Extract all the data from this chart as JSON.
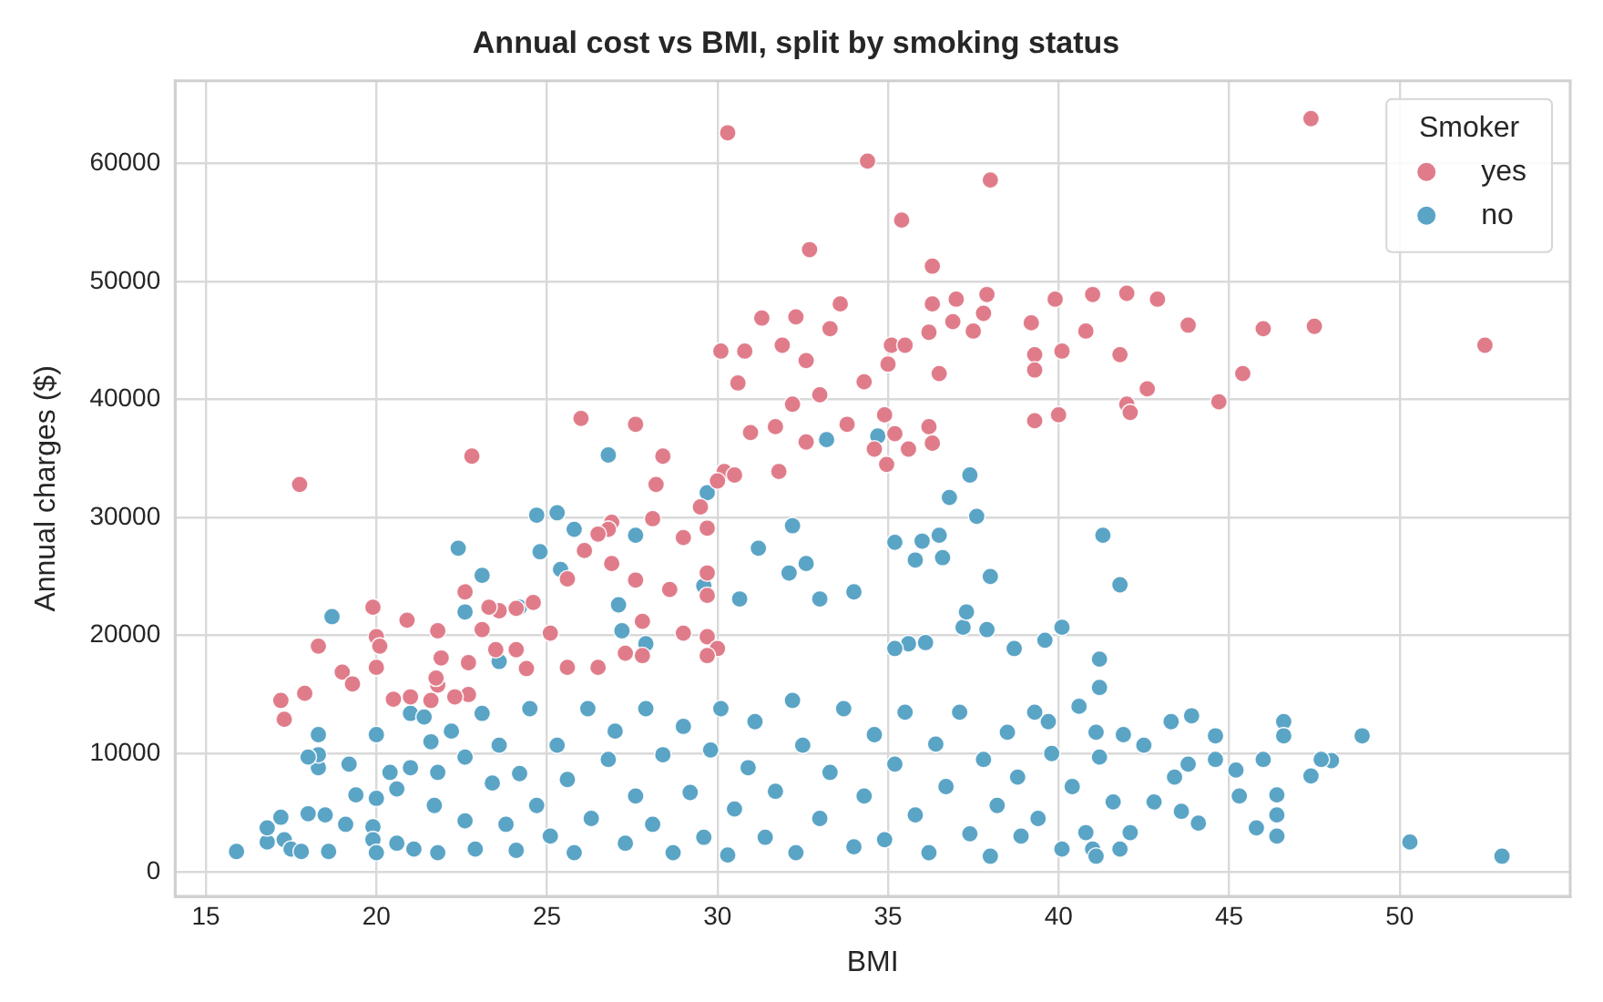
{
  "chart_data": {
    "type": "scatter",
    "title": "Annual cost vs BMI, split by smoking status",
    "xlabel": "BMI",
    "ylabel": "Annual charges ($)",
    "legend_title": "Smoker",
    "legend": "top right",
    "grid": true,
    "marker": "circle",
    "xlim": [
      14.1,
      55
    ],
    "xticks": [
      15,
      20,
      25,
      30,
      35,
      40,
      45,
      50
    ],
    "ylim": [
      -2100,
      67000
    ],
    "yticks": [
      0,
      10000,
      20000,
      30000,
      40000,
      50000,
      60000
    ],
    "series": [
      {
        "name": "yes",
        "color": "#e07c8a",
        "x": [
          47.4,
          30.3,
          34.4,
          38.0,
          35.4,
          32.7,
          36.3,
          47.5,
          52.5,
          46.0,
          44.7,
          45.4,
          43.8,
          42.9,
          42.0,
          41.0,
          39.9,
          40.8,
          41.8,
          42.0,
          42.1,
          42.6,
          37.9,
          39.2,
          40.1,
          39.3,
          39.3,
          40.0,
          39.3,
          36.3,
          37.0,
          37.8,
          36.9,
          36.2,
          37.5,
          36.5,
          36.2,
          36.3,
          35.2,
          35.6,
          34.9,
          35.0,
          35.1,
          35.5,
          34.3,
          34.96,
          34.6,
          33.8,
          33.6,
          33.3,
          32.3,
          31.3,
          30.8,
          31.9,
          32.6,
          30.1,
          30.6,
          32.2,
          33.0,
          31.7,
          30.97,
          32.6,
          31.8,
          30.2,
          30.0,
          30.5,
          29.5,
          29.7,
          29.7,
          29.7,
          29.7,
          30.0,
          29.7,
          27.6,
          26.0,
          22.8,
          28.4,
          28.2,
          17.75,
          28.1,
          29.0,
          26.9,
          26.8,
          26.5,
          26.1,
          25.6,
          26.9,
          27.6,
          27.8,
          28.6,
          29.0,
          27.8,
          27.3,
          26.5,
          25.6,
          25.1,
          24.6,
          24.1,
          23.6,
          23.3,
          22.6,
          23.1,
          22.7,
          23.5,
          24.1,
          24.4,
          22.7,
          21.9,
          21.8,
          21.6,
          21.0,
          21.8,
          20.9,
          19.9,
          20.0,
          20.1,
          20.0,
          19.0,
          19.3,
          18.3,
          17.9,
          17.2,
          17.3,
          20.5,
          21.75,
          22.3
        ],
        "values": [
          63800,
          62600,
          60200,
          58600,
          55200,
          52700,
          51300,
          46200,
          44600,
          46000,
          39800,
          42200,
          46300,
          48500,
          49000,
          48900,
          48500,
          45800,
          43800,
          39600,
          38900,
          40900,
          48900,
          46500,
          44100,
          43800,
          42500,
          38700,
          38200,
          48100,
          48500,
          47300,
          46600,
          45700,
          45800,
          42200,
          37700,
          36300,
          37100,
          35800,
          38700,
          43000,
          44600,
          44600,
          41500,
          34500,
          35800,
          37900,
          48100,
          46000,
          47000,
          46900,
          44100,
          44600,
          43300,
          44100,
          41400,
          39600,
          40400,
          37700,
          37200,
          36400,
          33900,
          33900,
          33100,
          33600,
          30900,
          29100,
          25300,
          23400,
          19900,
          18900,
          18300,
          37900,
          38400,
          35200,
          35200,
          32800,
          32800,
          29900,
          28300,
          29600,
          29000,
          28600,
          27200,
          24800,
          26100,
          24700,
          21200,
          23900,
          20200,
          18300,
          18500,
          17300,
          17300,
          20200,
          22800,
          22300,
          22100,
          22400,
          23700,
          20500,
          17700,
          18800,
          18800,
          17200,
          15000,
          18100,
          15800,
          14500,
          14800,
          20400,
          21300,
          22400,
          19900,
          19100,
          17300,
          16900,
          15900,
          19100,
          15100,
          14500,
          12900,
          14600,
          16400,
          14800
        ]
      },
      {
        "name": "no",
        "color": "#5aa4c6",
        "x": [
          53.0,
          50.3,
          48.9,
          48.0,
          47.7,
          47.4,
          46.6,
          46.6,
          46.4,
          46.4,
          46.4,
          45.8,
          46.0,
          45.3,
          45.2,
          44.6,
          44.6,
          43.9,
          43.3,
          43.8,
          43.6,
          42.8,
          42.1,
          41.8,
          41.3,
          41.8,
          41.0,
          41.1,
          39.7,
          41.1,
          41.2,
          41.2,
          40.1,
          39.6,
          38.7,
          37.9,
          37.2,
          37.3,
          38.0,
          37.6,
          37.4,
          36.8,
          36.6,
          36.5,
          36.0,
          35.8,
          35.2,
          35.6,
          36.1,
          35.2,
          26.8,
          34.7,
          33.2,
          24.7,
          25.3,
          25.8,
          27.6,
          29.7,
          32.2,
          31.2,
          32.1,
          32.6,
          33.0,
          34.0,
          18.7,
          22.4,
          24.8,
          23.1,
          22.6,
          24.2,
          27.1,
          27.2,
          27.9,
          23.6,
          25.4,
          29.6,
          30.65,
          15.9,
          16.8,
          16.8,
          17.2,
          17.3,
          17.5,
          17.8,
          18.0,
          18.3,
          18.3,
          18.3,
          18.0,
          18.6,
          18.5,
          19.2,
          19.1,
          19.4,
          19.9,
          19.9,
          20.0,
          20.0,
          20.0,
          20.4,
          20.6,
          20.6,
          21.1,
          21.0,
          21.0,
          21.4,
          21.6,
          21.8,
          21.7,
          21.8,
          22.2,
          22.6,
          22.6,
          22.9,
          23.1,
          23.4,
          23.6,
          23.8,
          24.1,
          24.2,
          24.5,
          24.7,
          25.1,
          25.3,
          25.6,
          25.8,
          26.2,
          26.3,
          26.8,
          27.0,
          27.3,
          27.6,
          27.9,
          28.1,
          28.4,
          28.7,
          29.0,
          29.2,
          29.6,
          29.8,
          30.1,
          30.3,
          30.5,
          30.9,
          31.1,
          31.4,
          31.7,
          32.2,
          32.3,
          32.5,
          33.0,
          33.3,
          33.7,
          34.0,
          34.3,
          34.6,
          34.9,
          35.2,
          35.5,
          35.8,
          36.2,
          36.4,
          36.7,
          37.1,
          37.4,
          37.8,
          38.0,
          38.2,
          38.5,
          38.8,
          38.9,
          39.3,
          39.4,
          39.8,
          40.1,
          40.4,
          40.6,
          40.8,
          41.2,
          41.6,
          41.9,
          42.5,
          44.1,
          43.4
        ],
        "values": [
          1300,
          2500,
          11500,
          9400,
          9500,
          8100,
          12700,
          11500,
          3000,
          4800,
          6500,
          3700,
          9500,
          6400,
          8600,
          11500,
          9500,
          13200,
          12700,
          9100,
          5100,
          5900,
          3300,
          24300,
          28500,
          1900,
          1900,
          1300,
          12700,
          11800,
          18000,
          15600,
          20700,
          19600,
          18900,
          20500,
          20700,
          22000,
          25000,
          30100,
          33600,
          31700,
          26600,
          28500,
          28000,
          26400,
          27900,
          19300,
          19400,
          18900,
          35300,
          36900,
          36600,
          30200,
          30400,
          29000,
          28500,
          32100,
          29300,
          27400,
          25300,
          26100,
          23100,
          23700,
          21600,
          27400,
          27100,
          25100,
          22000,
          22400,
          22600,
          20400,
          19300,
          17800,
          25600,
          24200,
          23100,
          1700,
          2500,
          3700,
          4600,
          2700,
          1900,
          1700,
          4900,
          8800,
          9900,
          11600,
          9700,
          1700,
          4800,
          9100,
          4000,
          6500,
          3800,
          2700,
          1600,
          6200,
          11600,
          8400,
          7000,
          2400,
          1900,
          8800,
          13400,
          13100,
          11000,
          8400,
          5600,
          1600,
          11900,
          9700,
          4300,
          1900,
          13400,
          7500,
          10700,
          4000,
          1800,
          8300,
          13800,
          5600,
          3000,
          10700,
          7800,
          1600,
          13800,
          4500,
          9500,
          11900,
          2400,
          6400,
          13800,
          4000,
          9900,
          1600,
          12300,
          6700,
          2900,
          10300,
          13800,
          1400,
          5300,
          8800,
          12700,
          2900,
          6800,
          14500,
          1600,
          10700,
          4500,
          8400,
          13800,
          2100,
          6400,
          11600,
          2700,
          9100,
          13500,
          4800,
          1600,
          10800,
          7200,
          13500,
          3200,
          9500,
          1300,
          5600,
          11800,
          8000,
          3000,
          13500,
          4500,
          10000,
          1900,
          7200,
          14000,
          3300,
          9700,
          5900,
          11600,
          10700,
          4100,
          8000
        ]
      }
    ]
  }
}
